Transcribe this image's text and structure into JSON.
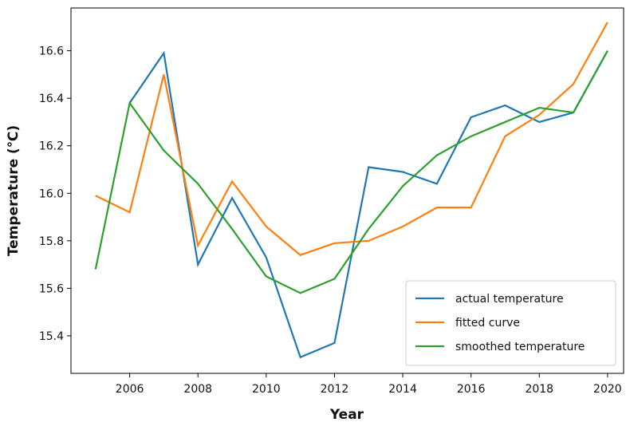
{
  "chart_data": {
    "type": "line",
    "x_label": "Year",
    "y_label": "Temperature (℃)",
    "x": [
      2005,
      2006,
      2007,
      2008,
      2009,
      2010,
      2011,
      2012,
      2013,
      2014,
      2015,
      2016,
      2017,
      2018,
      2019,
      2020
    ],
    "series": [
      {
        "name": "actual temperature",
        "color": "#1f77b4",
        "values": [
          null,
          16.38,
          16.59,
          15.7,
          15.98,
          15.73,
          15.31,
          15.37,
          16.11,
          16.09,
          16.04,
          16.32,
          16.37,
          16.3,
          16.34,
          16.6
        ]
      },
      {
        "name": "fitted curve",
        "color": "#ff7f0e",
        "values": [
          15.99,
          15.92,
          16.5,
          15.78,
          16.05,
          15.86,
          15.74,
          15.79,
          15.8,
          15.86,
          15.94,
          15.94,
          16.24,
          16.33,
          16.46,
          16.72
        ]
      },
      {
        "name": "smoothed temperature",
        "color": "#2ca02c",
        "values": [
          15.68,
          16.38,
          16.18,
          16.04,
          15.85,
          15.65,
          15.58,
          15.64,
          15.85,
          16.03,
          16.16,
          16.24,
          16.3,
          16.36,
          16.34,
          16.6
        ]
      }
    ],
    "xlim": [
      2004.28,
      2020.47
    ],
    "xticks": [
      2006,
      2008,
      2010,
      2012,
      2014,
      2016,
      2018,
      2020
    ],
    "ylim": [
      15.242,
      16.78
    ],
    "yticks": [
      15.4,
      15.6,
      15.8,
      {
        "value": 16,
        "label": "16.0"
      },
      16.2,
      16.4,
      16.6
    ],
    "grid": false,
    "legend": "lower right"
  }
}
